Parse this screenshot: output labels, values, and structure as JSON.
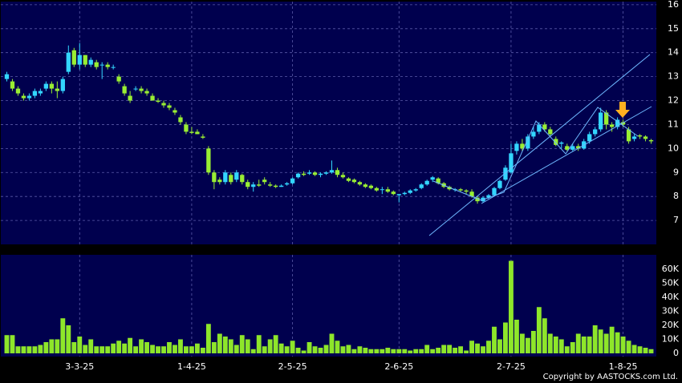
{
  "chart_data": [
    {
      "type": "candlestick",
      "up_color": "#33d6ff",
      "down_color": "#99ee33",
      "ylim": [
        6.0,
        16.13
      ],
      "yticks": [
        7,
        8,
        9,
        10,
        11,
        12,
        13,
        14,
        15,
        16
      ],
      "grid": true,
      "open": [
        12.9,
        12.8,
        12.5,
        12.2,
        12.1,
        12.2,
        12.3,
        12.5,
        12.7,
        12.5,
        12.4,
        13.2,
        14.1,
        13.5,
        13.9,
        13.5,
        13.6,
        13.5,
        13.5,
        13.4,
        13.0,
        12.6,
        12.2,
        12.5,
        12.5,
        12.4,
        12.2,
        12.0,
        11.9,
        11.8,
        11.6,
        11.3,
        11.0,
        10.7,
        10.7,
        10.5,
        10.0,
        9.0,
        8.7,
        8.6,
        8.9,
        8.7,
        8.9,
        8.6,
        8.4,
        8.5,
        8.7,
        8.5,
        8.45,
        8.4,
        8.5,
        8.55,
        8.8,
        8.95,
        8.95,
        9.0,
        8.9,
        8.95,
        9.0,
        9.1,
        8.9,
        8.75,
        8.7,
        8.6,
        8.5,
        8.45,
        8.35,
        8.3,
        8.3,
        8.2,
        8.05,
        8.1,
        8.15,
        8.25,
        8.35,
        8.5,
        8.7,
        8.75,
        8.55,
        8.4,
        8.3,
        8.3,
        8.25,
        8.2,
        7.95,
        7.8,
        7.95,
        8.05,
        8.35,
        8.7,
        9.0,
        9.9,
        10.2,
        10.0,
        10.5,
        10.7,
        11.0,
        10.8,
        10.4,
        10.2,
        10.1,
        9.95,
        10.1,
        10.0,
        10.3,
        10.6,
        10.8,
        11.5,
        11.0,
        10.9,
        11.1,
        10.8,
        10.4,
        10.55,
        10.5,
        10.35
      ],
      "high": [
        13.2,
        12.9,
        12.6,
        12.3,
        12.3,
        12.5,
        12.5,
        12.8,
        12.8,
        12.8,
        13.0,
        14.3,
        14.2,
        14.4,
        13.9,
        13.8,
        13.7,
        13.6,
        13.6,
        13.5,
        13.1,
        12.7,
        12.4,
        12.6,
        12.6,
        12.5,
        12.3,
        12.1,
        12.0,
        11.9,
        11.7,
        11.4,
        11.1,
        10.9,
        10.8,
        10.6,
        10.1,
        9.1,
        8.8,
        9.1,
        9.0,
        9.1,
        8.95,
        8.7,
        8.6,
        8.7,
        8.8,
        8.6,
        8.5,
        8.5,
        8.6,
        8.8,
        9.0,
        9.05,
        9.1,
        9.05,
        9.0,
        9.05,
        9.5,
        9.2,
        9.0,
        8.8,
        8.75,
        8.65,
        8.55,
        8.5,
        8.4,
        8.4,
        8.4,
        8.25,
        8.1,
        8.2,
        8.3,
        8.35,
        8.55,
        8.7,
        8.85,
        8.8,
        8.6,
        8.45,
        8.35,
        8.35,
        8.3,
        8.3,
        8.0,
        8.0,
        8.1,
        8.4,
        8.7,
        9.3,
        10.2,
        10.3,
        10.4,
        10.6,
        10.9,
        11.1,
        11.1,
        10.9,
        10.5,
        10.3,
        10.2,
        10.2,
        10.2,
        10.4,
        10.7,
        10.9,
        11.7,
        11.6,
        11.1,
        11.3,
        11.2,
        10.9,
        10.6,
        10.6,
        10.55,
        10.4
      ],
      "low": [
        12.8,
        12.4,
        12.2,
        12.0,
        12.0,
        12.1,
        12.2,
        12.4,
        12.3,
        12.1,
        12.3,
        13.1,
        13.4,
        13.3,
        13.4,
        13.4,
        13.3,
        12.9,
        13.3,
        13.3,
        12.7,
        12.2,
        11.9,
        12.4,
        12.3,
        12.2,
        12.0,
        11.9,
        11.7,
        11.6,
        11.4,
        11.0,
        10.6,
        10.6,
        10.6,
        10.4,
        8.9,
        8.3,
        8.5,
        8.5,
        8.5,
        8.6,
        8.5,
        8.3,
        8.2,
        8.4,
        8.5,
        8.4,
        8.35,
        8.4,
        8.45,
        8.5,
        8.75,
        8.85,
        8.9,
        8.85,
        8.8,
        8.9,
        8.95,
        8.8,
        8.75,
        8.6,
        8.55,
        8.45,
        8.35,
        8.3,
        8.2,
        8.1,
        8.15,
        8.05,
        7.75,
        8.05,
        8.1,
        8.2,
        8.3,
        8.45,
        8.6,
        8.5,
        8.35,
        8.25,
        8.2,
        8.2,
        8.1,
        7.95,
        7.7,
        7.75,
        7.9,
        8.0,
        8.3,
        8.65,
        8.95,
        9.75,
        9.9,
        9.9,
        10.4,
        10.6,
        10.7,
        10.5,
        10.1,
        10.0,
        9.9,
        9.9,
        9.9,
        9.95,
        10.2,
        10.5,
        10.7,
        10.8,
        10.7,
        10.8,
        10.9,
        10.2,
        10.3,
        10.4,
        10.3,
        10.2
      ],
      "close": [
        13.1,
        12.5,
        12.3,
        12.1,
        12.2,
        12.4,
        12.4,
        12.7,
        12.5,
        12.4,
        12.9,
        14.0,
        13.5,
        13.9,
        13.5,
        13.7,
        13.4,
        13.5,
        13.4,
        13.4,
        12.8,
        12.3,
        12.0,
        12.5,
        12.4,
        12.3,
        12.0,
        11.95,
        11.8,
        11.7,
        11.5,
        11.1,
        10.7,
        10.65,
        10.6,
        10.45,
        9.0,
        8.6,
        8.6,
        9.0,
        8.6,
        9.0,
        8.6,
        8.4,
        8.5,
        8.45,
        8.6,
        8.45,
        8.4,
        8.45,
        8.55,
        8.75,
        8.95,
        8.9,
        9.0,
        8.9,
        8.95,
        9.0,
        9.1,
        8.9,
        8.8,
        8.65,
        8.6,
        8.5,
        8.4,
        8.35,
        8.25,
        8.3,
        8.2,
        8.1,
        8.1,
        8.15,
        8.25,
        8.3,
        8.5,
        8.65,
        8.8,
        8.55,
        8.4,
        8.3,
        8.3,
        8.25,
        8.2,
        8.0,
        7.8,
        7.95,
        8.05,
        8.35,
        8.65,
        9.2,
        9.8,
        10.2,
        10.0,
        10.5,
        10.7,
        11.0,
        10.8,
        10.6,
        10.15,
        10.25,
        9.95,
        10.1,
        10.0,
        10.3,
        10.6,
        10.8,
        11.5,
        11.0,
        10.9,
        11.2,
        11.0,
        10.3,
        10.5,
        10.5,
        10.4,
        10.3
      ]
    },
    {
      "type": "bar",
      "color": "#8ee62a",
      "ylim": [
        -2300,
        70300
      ],
      "yticks": [
        0,
        {
          "value": 10000,
          "label": "10K"
        },
        {
          "value": 20000,
          "label": "20K"
        },
        {
          "value": 30000,
          "label": "30K"
        },
        {
          "value": 40000,
          "label": "40K"
        },
        {
          "value": 50000,
          "label": "50K"
        },
        {
          "value": 60000,
          "label": "60K"
        }
      ],
      "categories": [
        null,
        null,
        null,
        null,
        null,
        null,
        null,
        null,
        null,
        null,
        null,
        null,
        null,
        "3-3-25",
        null,
        null,
        null,
        null,
        null,
        null,
        null,
        null,
        null,
        null,
        null,
        null,
        null,
        null,
        null,
        null,
        null,
        null,
        null,
        "1-4-25",
        null,
        null,
        null,
        null,
        null,
        null,
        null,
        null,
        null,
        null,
        null,
        null,
        null,
        null,
        null,
        null,
        null,
        "2-5-25",
        null,
        null,
        null,
        null,
        null,
        null,
        null,
        null,
        null,
        null,
        null,
        null,
        null,
        null,
        null,
        null,
        null,
        null,
        "2-6-25",
        null,
        null,
        null,
        null,
        null,
        null,
        null,
        null,
        null,
        null,
        null,
        null,
        null,
        null,
        null,
        null,
        null,
        null,
        null,
        "2-7-25",
        null,
        null,
        null,
        null,
        null,
        null,
        null,
        null,
        null,
        null,
        null,
        null,
        null,
        null,
        null,
        null,
        null,
        null,
        null,
        "1-8-25",
        null,
        null,
        null,
        null,
        null
      ],
      "values": [
        13000,
        13000,
        5000,
        5000,
        5000,
        5000,
        6000,
        8000,
        10000,
        10000,
        25000,
        20000,
        8000,
        12000,
        6000,
        10000,
        5000,
        5000,
        5000,
        7000,
        9000,
        7000,
        11000,
        5000,
        10000,
        8000,
        6000,
        5000,
        5000,
        8000,
        6000,
        10000,
        5000,
        5000,
        7000,
        4000,
        21000,
        8000,
        14000,
        12000,
        10000,
        6000,
        13000,
        10000,
        3000,
        13000,
        5000,
        10000,
        13000,
        7000,
        5000,
        9000,
        4000,
        2000,
        8000,
        5000,
        4000,
        6000,
        14000,
        9000,
        5000,
        6000,
        3000,
        5000,
        4000,
        3000,
        3000,
        3000,
        4000,
        3000,
        3000,
        3000,
        2000,
        3000,
        3000,
        6000,
        3000,
        4000,
        6000,
        6000,
        4000,
        5000,
        2000,
        9000,
        7000,
        5000,
        9000,
        19000,
        10000,
        22000,
        66000,
        24000,
        14000,
        11000,
        16000,
        33000,
        25000,
        14000,
        12000,
        10000,
        5000,
        8000,
        14000,
        12000,
        12000,
        20000,
        17000,
        14000,
        19000,
        15000,
        12000,
        9000,
        6000,
        5000,
        4000,
        3000
      ],
      "source": "Copyright by AASTOCKS.com Ltd."
    }
  ]
}
